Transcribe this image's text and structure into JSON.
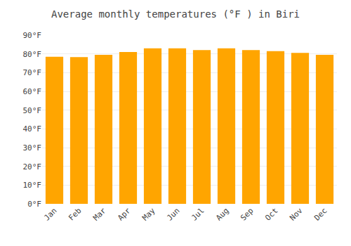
{
  "chart_data": {
    "type": "bar",
    "title": "Average monthly temperatures (°F ) in Biri",
    "categories": [
      "Jan",
      "Feb",
      "Mar",
      "Apr",
      "May",
      "Jun",
      "Jul",
      "Aug",
      "Sep",
      "Oct",
      "Nov",
      "Dec"
    ],
    "values": [
      78.5,
      78.3,
      79.5,
      81.0,
      83.0,
      83.0,
      82.0,
      83.0,
      82.0,
      81.5,
      80.5,
      79.5
    ],
    "color": "#FFA500",
    "ylim": [
      0,
      90
    ],
    "yticks": [
      {
        "value": 0,
        "label": "0°F"
      },
      {
        "value": 10,
        "label": "10°F"
      },
      {
        "value": 20,
        "label": "20°F"
      },
      {
        "value": 30,
        "label": "30°F"
      },
      {
        "value": 40,
        "label": "40°F"
      },
      {
        "value": 50,
        "label": "50°F"
      },
      {
        "value": 60,
        "label": "60°F"
      },
      {
        "value": 70,
        "label": "70°F"
      },
      {
        "value": 80,
        "label": "80°F"
      },
      {
        "value": 90,
        "label": "90°F"
      }
    ],
    "grid": true
  }
}
